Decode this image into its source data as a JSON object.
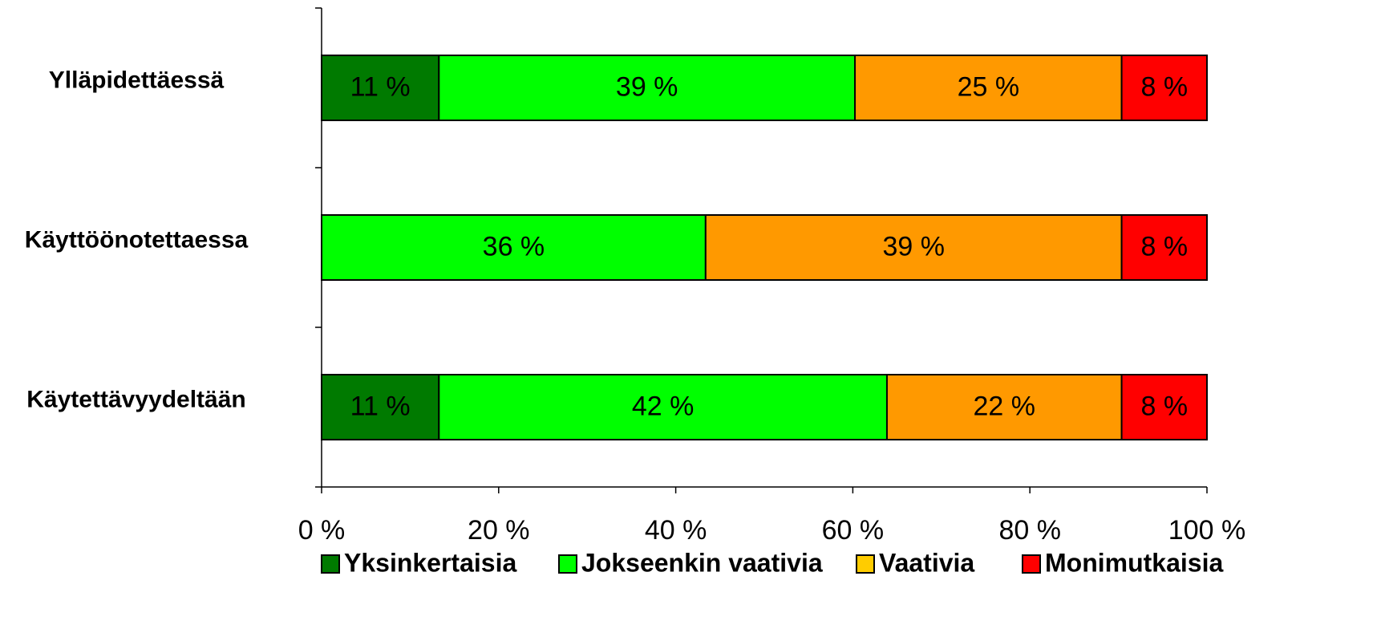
{
  "chart_data": {
    "type": "bar",
    "orientation": "horizontal",
    "stacked": "percent",
    "categories": [
      "Ylläpidettäessä",
      "Käyttöönotettaessa",
      "Käytettävyydeltään"
    ],
    "series": [
      {
        "name": "Yksinkertaisia",
        "color": "#007a00",
        "values": [
          11,
          null,
          11
        ],
        "value_labels": [
          "11 %",
          null,
          "11 %"
        ]
      },
      {
        "name": "Jokseenkin vaativia",
        "color": "#00ff00",
        "values": [
          39,
          36,
          42
        ],
        "value_labels": [
          "39 %",
          "36 %",
          "42 %"
        ]
      },
      {
        "name": "Vaativia",
        "color": "#ff9900",
        "legend_color": "#ffcc00",
        "values": [
          25,
          39,
          22
        ],
        "value_labels": [
          "25 %",
          "39 %",
          "22 %"
        ]
      },
      {
        "name": "Monimutkaisia",
        "color": "#ff0000",
        "values": [
          8,
          8,
          8
        ],
        "value_labels": [
          "8 %",
          "8 %",
          "8 %"
        ]
      }
    ],
    "xlim": [
      0,
      100
    ],
    "xticks": [
      {
        "value": 0,
        "label": "0 %"
      },
      {
        "value": 20,
        "label": "20 %"
      },
      {
        "value": 40,
        "label": "40 %"
      },
      {
        "value": 60,
        "label": "60 %"
      },
      {
        "value": 80,
        "label": "80 %"
      },
      {
        "value": 100,
        "label": "100 %"
      }
    ],
    "legend": "bottom"
  }
}
